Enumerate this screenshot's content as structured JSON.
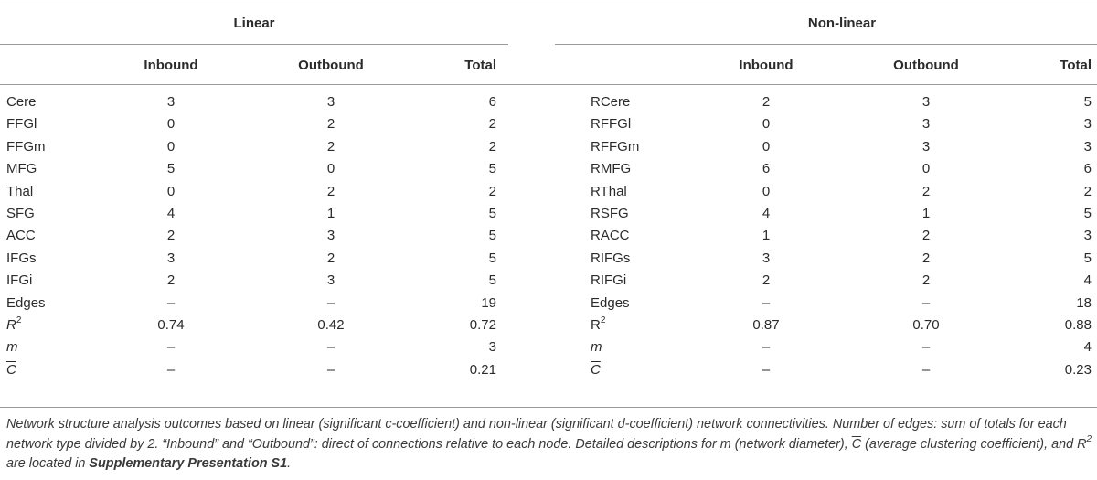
{
  "groups": {
    "linear": "Linear",
    "nonlinear": "Non-linear"
  },
  "columns": {
    "inbound": "Inbound",
    "outbound": "Outbound",
    "total": "Total"
  },
  "rows": [
    {
      "l_label": "Cere",
      "l_in": "3",
      "l_out": "3",
      "l_tot": "6",
      "n_label": "RCere",
      "n_in": "2",
      "n_out": "3",
      "n_tot": "5"
    },
    {
      "l_label": "FFGl",
      "l_in": "0",
      "l_out": "2",
      "l_tot": "2",
      "n_label": "RFFGl",
      "n_in": "0",
      "n_out": "3",
      "n_tot": "3"
    },
    {
      "l_label": "FFGm",
      "l_in": "0",
      "l_out": "2",
      "l_tot": "2",
      "n_label": "RFFGm",
      "n_in": "0",
      "n_out": "3",
      "n_tot": "3"
    },
    {
      "l_label": "MFG",
      "l_in": "5",
      "l_out": "0",
      "l_tot": "5",
      "n_label": "RMFG",
      "n_in": "6",
      "n_out": "0",
      "n_tot": "6"
    },
    {
      "l_label": "Thal",
      "l_in": "0",
      "l_out": "2",
      "l_tot": "2",
      "n_label": "RThal",
      "n_in": "0",
      "n_out": "2",
      "n_tot": "2"
    },
    {
      "l_label": "SFG",
      "l_in": "4",
      "l_out": "1",
      "l_tot": "5",
      "n_label": "RSFG",
      "n_in": "4",
      "n_out": "1",
      "n_tot": "5"
    },
    {
      "l_label": "ACC",
      "l_in": "2",
      "l_out": "3",
      "l_tot": "5",
      "n_label": "RACC",
      "n_in": "1",
      "n_out": "2",
      "n_tot": "3"
    },
    {
      "l_label": "IFGs",
      "l_in": "3",
      "l_out": "2",
      "l_tot": "5",
      "n_label": "RIFGs",
      "n_in": "3",
      "n_out": "2",
      "n_tot": "5"
    },
    {
      "l_label": "IFGi",
      "l_in": "2",
      "l_out": "3",
      "l_tot": "5",
      "n_label": "RIFGi",
      "n_in": "2",
      "n_out": "2",
      "n_tot": "4"
    },
    {
      "l_label": "Edges",
      "l_in": "–",
      "l_out": "–",
      "l_tot": "19",
      "n_label": "Edges",
      "n_in": "–",
      "n_out": "–",
      "n_tot": "18"
    },
    {
      "l_label": "R",
      "l_sup": "2",
      "l_in": "0.74",
      "l_out": "0.42",
      "l_tot": "0.72",
      "n_label": "R",
      "n_sup": "2",
      "n_in": "0.87",
      "n_out": "0.70",
      "n_tot": "0.88"
    },
    {
      "l_label": "m",
      "l_in": "–",
      "l_out": "–",
      "l_tot": "3",
      "n_label": "m",
      "n_in": "–",
      "n_out": "–",
      "n_tot": "4"
    },
    {
      "l_label": "C",
      "l_in": "–",
      "l_out": "–",
      "l_tot": "0.21",
      "n_label": "C",
      "n_in": "–",
      "n_out": "–",
      "n_tot": "0.23"
    }
  ],
  "caption": {
    "text": "Network structure analysis outcomes based on linear (significant c-coefficient) and non-linear (significant d-coefficient) network connectivities. Number of edges: sum of totals for each network type divided by 2. “Inbound” and “Outbound”: direct of connections relative to each node. Detailed descriptions for m (network diameter), C (average clustering coefficient), and R2 are located in ",
    "bold": "Supplementary Presentation S1",
    "end": "."
  }
}
